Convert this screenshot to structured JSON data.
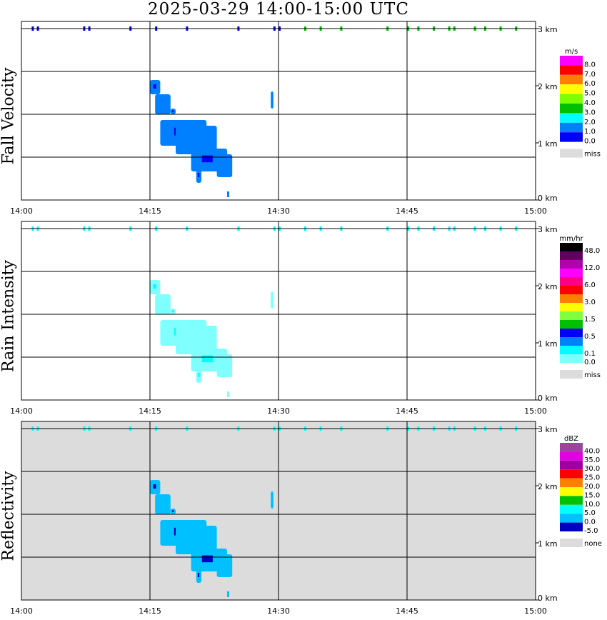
{
  "title": "2025-03-29  14:00-15:00 UTC",
  "chart_data": [
    {
      "type": "heatmap",
      "ylabel": "Fall Velocity",
      "units": "m/s",
      "background": "#ffffff",
      "legend": [
        {
          "label": "8.0",
          "color": "#ff00ff"
        },
        {
          "label": "7.0",
          "color": "#ff0000"
        },
        {
          "label": "6.0",
          "color": "#ff8000"
        },
        {
          "label": "5.0",
          "color": "#ffff00"
        },
        {
          "label": "4.0",
          "color": "#80ff00"
        },
        {
          "label": "3.0",
          "color": "#00c000"
        },
        {
          "label": "2.0",
          "color": "#00ffff"
        },
        {
          "label": "1.0",
          "color": "#0080ff"
        },
        {
          "label": "0.0",
          "color": "#0000ff"
        }
      ],
      "missing": {
        "label": "miss",
        "color": "#dcdcdc"
      },
      "echo_colors": [
        "#0080ff",
        "#0000ff",
        "#00ffff"
      ]
    },
    {
      "type": "heatmap",
      "ylabel": "Rain Intensity",
      "units": "mm/hr",
      "background": "#ffffff",
      "legend": [
        {
          "label": "48.0",
          "color": "#000000"
        },
        {
          "label": "",
          "color": "#600060"
        },
        {
          "label": "12.0",
          "color": "#b000b0"
        },
        {
          "label": "",
          "color": "#ff00ff"
        },
        {
          "label": "6.0",
          "color": "#ff0080"
        },
        {
          "label": "",
          "color": "#ff0000"
        },
        {
          "label": "3.0",
          "color": "#ff8000"
        },
        {
          "label": "",
          "color": "#ffff00"
        },
        {
          "label": "1.5",
          "color": "#80ff40"
        },
        {
          "label": "",
          "color": "#00c000"
        },
        {
          "label": "0.5",
          "color": "#0000ff"
        },
        {
          "label": "",
          "color": "#0080ff"
        },
        {
          "label": "0.1",
          "color": "#00ffff"
        },
        {
          "label": "0.0",
          "color": "#80ffff"
        }
      ],
      "missing": {
        "label": "miss",
        "color": "#dcdcdc"
      },
      "echo_colors": [
        "#80ffff",
        "#00ffff",
        "#0080ff"
      ]
    },
    {
      "type": "heatmap",
      "ylabel": "Reflectivity",
      "units": "dBZ",
      "background": "#dcdcdc",
      "legend": [
        {
          "label": "40.0",
          "color": "#a040a0"
        },
        {
          "label": "35.0",
          "color": "#e000e0"
        },
        {
          "label": "30.0",
          "color": "#a000a0"
        },
        {
          "label": "25.0",
          "color": "#ff0000"
        },
        {
          "label": "20.0",
          "color": "#ff8000"
        },
        {
          "label": "15.0",
          "color": "#ffff00"
        },
        {
          "label": "10.0",
          "color": "#00c000"
        },
        {
          "label": "5.0",
          "color": "#00ffff"
        },
        {
          "label": "0.0",
          "color": "#00c0ff"
        },
        {
          "label": "-5.0",
          "color": "#0000c0"
        }
      ],
      "missing": {
        "label": "none",
        "color": "#dcdcdc"
      },
      "echo_colors": [
        "#00c0ff",
        "#0000c0",
        "#00ffff"
      ]
    }
  ],
  "x_ticks": [
    "14:00",
    "14:15",
    "14:30",
    "14:45",
    "15:00"
  ],
  "y_ticks": [
    "3 km",
    "2 km",
    "1 km",
    "0 km"
  ],
  "y_range_km": [
    0,
    3
  ],
  "x_range": [
    "14:00",
    "15:00"
  ]
}
